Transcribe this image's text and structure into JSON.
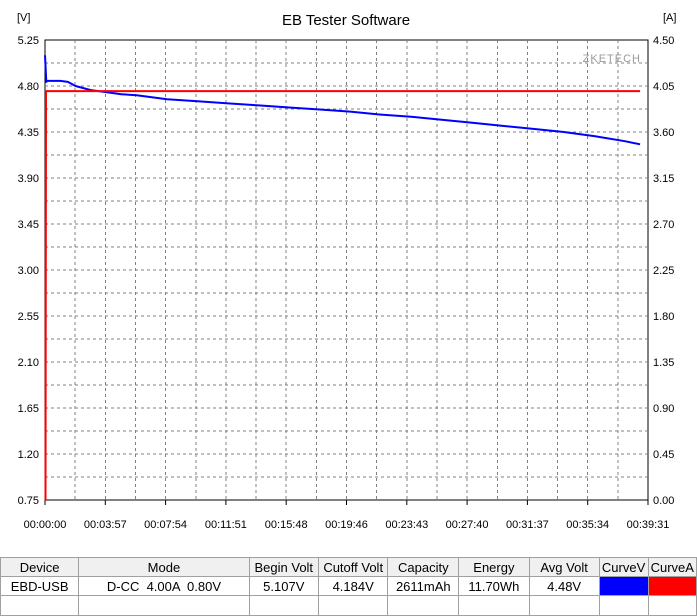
{
  "chart_data": {
    "type": "line",
    "title": "EB Tester Software",
    "watermark": "ZKETECH",
    "y_left_unit": "[V]",
    "y_right_unit": "[A]",
    "y_left_range": [
      0.75,
      5.25
    ],
    "y_left_ticks": [
      "5.25",
      "4.80",
      "4.35",
      "3.90",
      "3.45",
      "3.00",
      "2.55",
      "2.10",
      "1.65",
      "1.20",
      "0.75"
    ],
    "y_right_range": [
      0.0,
      4.5
    ],
    "y_right_ticks": [
      "4.50",
      "4.05",
      "3.60",
      "3.15",
      "2.70",
      "2.25",
      "1.80",
      "1.35",
      "0.90",
      "0.45",
      "0.00"
    ],
    "x_range_seconds": [
      0,
      2371
    ],
    "x_ticks": [
      "00:00:00",
      "00:03:57",
      "00:07:54",
      "00:11:51",
      "00:15:48",
      "00:19:46",
      "00:23:43",
      "00:27:40",
      "00:31:37",
      "00:35:34",
      "00:39:31"
    ],
    "grid": true,
    "series": [
      {
        "name": "CurveV",
        "color": "#0000ff",
        "axis": "left",
        "x": [
          0,
          5,
          10,
          30,
          60,
          90,
          120,
          180,
          240,
          300,
          360,
          480,
          600,
          720,
          840,
          960,
          1080,
          1200,
          1320,
          1440,
          1560,
          1680,
          1800,
          1920,
          2040,
          2160,
          2280,
          2340
        ],
        "y": [
          5.1,
          4.84,
          4.85,
          4.85,
          4.85,
          4.84,
          4.8,
          4.76,
          4.74,
          4.72,
          4.71,
          4.67,
          4.65,
          4.63,
          4.61,
          4.59,
          4.57,
          4.55,
          4.52,
          4.5,
          4.47,
          4.44,
          4.41,
          4.38,
          4.35,
          4.31,
          4.26,
          4.23
        ]
      },
      {
        "name": "CurveA",
        "color": "#ff0000",
        "axis": "right",
        "x": [
          0,
          2,
          4,
          2340
        ],
        "y": [
          0.0,
          0.0,
          4.0,
          4.0
        ]
      }
    ]
  },
  "results_table": {
    "headers": [
      "Device",
      "Mode",
      "Begin Volt",
      "Cutoff Volt",
      "Capacity",
      "Energy",
      "Avg Volt",
      "CurveV",
      "CurveA"
    ],
    "row": {
      "device": "EBD-USB",
      "mode": "D-CC  4.00A  0.80V",
      "begin_volt": "5.107V",
      "cutoff_volt": "4.184V",
      "capacity": "2611mAh",
      "energy": "11.70Wh",
      "avg_volt": "4.48V",
      "curve_v_color": "#0000ff",
      "curve_a_color": "#ff0000"
    }
  }
}
